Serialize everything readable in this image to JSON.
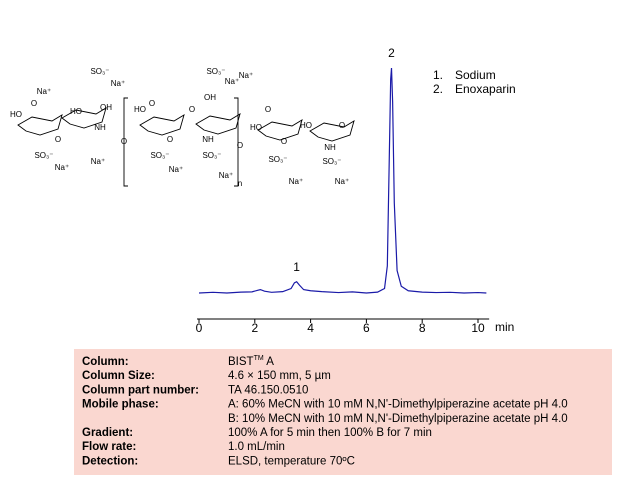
{
  "chart_data": {
    "type": "line",
    "x_unit": "min",
    "xlim": [
      0,
      10.4
    ],
    "xticks": [
      0,
      2,
      4,
      6,
      8,
      10
    ],
    "ylim": [
      0,
      100
    ],
    "series": [
      {
        "name": "Enoxaparin",
        "color": "#1a1aa8",
        "x": [
          0,
          0.5,
          1,
          1.5,
          1.9,
          2.1,
          2.2,
          2.35,
          2.6,
          3,
          3.3,
          3.42,
          3.5,
          3.6,
          3.75,
          4,
          4.4,
          5,
          5.5,
          6,
          6.4,
          6.65,
          6.75,
          6.82,
          6.87,
          6.9,
          6.94,
          7.0,
          7.1,
          7.25,
          7.5,
          8,
          8.5,
          9,
          9.5,
          10,
          10.3
        ],
        "values": [
          0,
          0.3,
          0,
          0.4,
          0.5,
          1.2,
          1.5,
          0.8,
          0.3,
          0.6,
          2,
          4.5,
          5,
          3.5,
          1.5,
          1,
          0.6,
          0.2,
          0.5,
          0,
          0.4,
          2,
          12,
          60,
          95,
          100,
          85,
          40,
          10,
          3,
          1,
          0.4,
          0.2,
          0.3,
          0,
          0.2,
          0
        ]
      }
    ],
    "annotations": [
      {
        "text": "1",
        "x": 3.5,
        "y": 5
      },
      {
        "text": "2",
        "x": 6.9,
        "y": 100
      }
    ],
    "legend": [
      {
        "marker": "1.",
        "name": "Sodium"
      },
      {
        "marker": "2.",
        "name": "Enoxaparin"
      }
    ]
  },
  "structure": {
    "labels": [
      "Na⁺",
      "HO",
      "O",
      "HO",
      "OH",
      "NH",
      "SO₃⁻",
      "O",
      "SO₃⁻",
      "Na⁺",
      "Na⁺",
      "Na⁺",
      "HO",
      "O",
      "O",
      "SO₃⁻",
      "Na⁺",
      "OH",
      "O",
      "NH",
      "SO₃⁻",
      "SO₃⁻",
      "Na⁺",
      "Na⁺",
      "n",
      "Na⁺",
      "HO",
      "O",
      "O",
      "SO₃⁻",
      "Na⁺",
      "HO",
      "O",
      "NH",
      "SO₃⁻",
      "Na⁺",
      "O",
      "O"
    ]
  },
  "table": {
    "rows": [
      [
        "Column:",
        [
          "BIST",
          "TM",
          " A"
        ]
      ],
      [
        "Column Size:",
        "4.6 × 150 mm, 5 µm"
      ],
      [
        "Column part number:",
        "TA  46.150.0510"
      ],
      [
        "Mobile phase:",
        "A:  60% MeCN with 10 mM  N,N'-Dimethylpiperazine acetate pH 4.0"
      ],
      [
        "",
        "B:  10% MeCN with 10 mM  N,N'-Dimethylpiperazine acetate pH 4.0"
      ],
      [
        "Gradient:",
        "100% A for 5 min then 100% B for 7 min"
      ],
      [
        "Flow rate:",
        "1.0 mL/min"
      ],
      [
        "Detection:",
        "ELSD, temperature  70ºC"
      ]
    ]
  }
}
